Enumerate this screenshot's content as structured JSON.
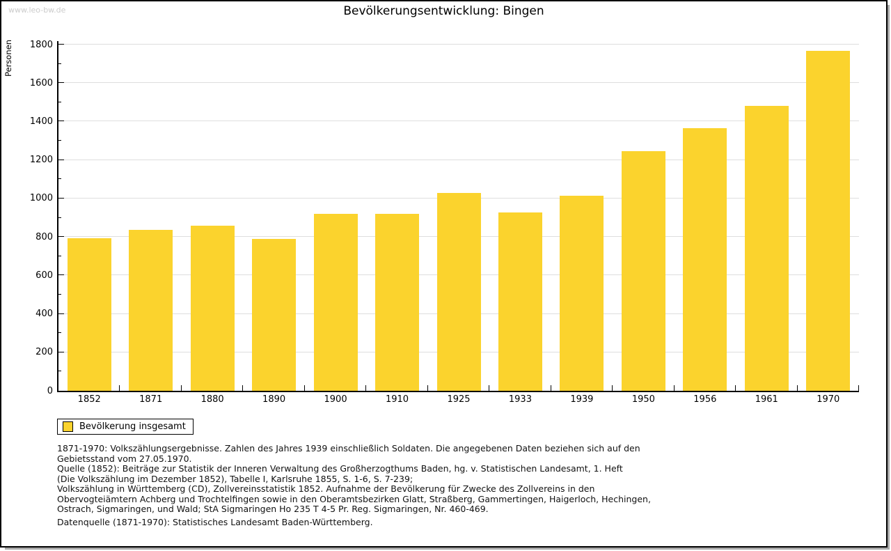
{
  "watermark": "www.leo-bw.de",
  "title": "Bevölkerungsentwicklung: Bingen",
  "chart_data": {
    "type": "bar",
    "title": "Bevölkerungsentwicklung: Bingen",
    "categories": [
      "1852",
      "1871",
      "1880",
      "1890",
      "1900",
      "1910",
      "1925",
      "1933",
      "1939",
      "1950",
      "1956",
      "1961",
      "1970"
    ],
    "values": [
      794,
      836,
      858,
      790,
      921,
      920,
      1028,
      927,
      1014,
      1246,
      1365,
      1480,
      1766
    ],
    "xlabel": "",
    "ylabel": "Personen",
    "ylim": [
      0,
      1800
    ],
    "y_major_step": 200,
    "y_minor_step": 100,
    "grid": true,
    "legend_position": "bottom-left",
    "legend": {
      "entries": [
        "Bevölkerung insgesamt"
      ]
    },
    "bar_color_hex": "#fbd32d",
    "gridline_color_hex": "#dedede"
  },
  "notes_lines": [
    "1871-1970: Volkszählungsergebnisse. Zahlen des Jahres 1939 einschließlich Soldaten. Die angegebenen Daten beziehen sich auf den",
    "Gebietsstand vom 27.05.1970.",
    "Quelle (1852): Beiträge zur Statistik der Inneren Verwaltung des Großherzogthums Baden, hg. v. Statistischen Landesamt, 1. Heft",
    "(Die Volkszählung im Dezember 1852), Tabelle I, Karlsruhe 1855, S. 1-6, S. 7-239;",
    "Volkszählung in Württemberg (CD), Zollvereinsstatistik 1852. Aufnahme der Bevölkerung für Zwecke des Zollvereins in den",
    "Obervogteiämtern Achberg und Trochtelfingen sowie in den Oberamtsbezirken Glatt, Straßberg, Gammertingen, Haigerloch, Hechingen,",
    "Ostrach, Sigmaringen, und Wald; StA Sigmaringen Ho 235 T 4-5 Pr. Reg. Sigmaringen, Nr. 460-469."
  ],
  "datasource": "Datenquelle (1871-1970): Statistisches Landesamt Baden-Württemberg."
}
